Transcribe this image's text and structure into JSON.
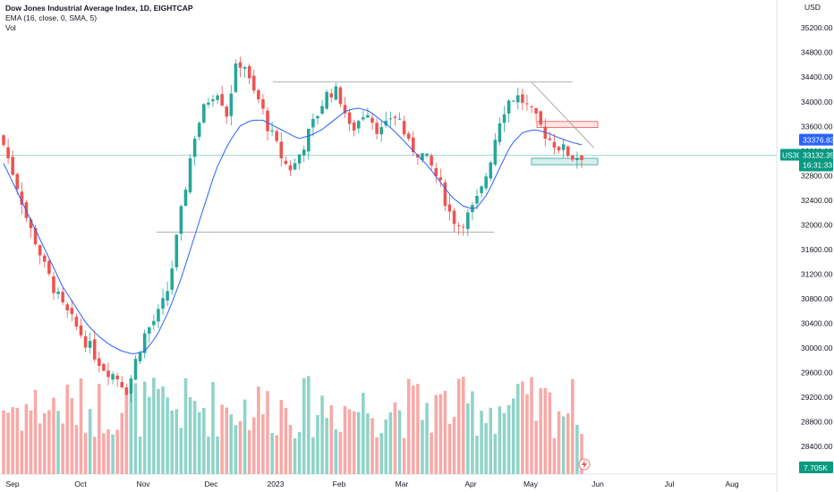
{
  "legend": {
    "title": "Dow Jones Industrial Average Index, 1D, EIGHTCAP",
    "ema": "EMA (16, close, 0, SMA, 5)",
    "vol": "Vol"
  },
  "currency": "USD",
  "badges": {
    "top_price": "33376.83",
    "symbol": "US30",
    "last_price": "33132.35",
    "countdown": "16:31:33",
    "volume": "7.705K"
  },
  "colors": {
    "up": "#26a69a",
    "down": "#ef5350",
    "up_vol": "#8fd3c8",
    "down_vol": "#f7a9a7",
    "ema": "#2962ff",
    "badge_blue": "#2962ff",
    "badge_teal": "#089981"
  },
  "chart_data": {
    "type": "candlestick",
    "title": "Dow Jones Industrial Average Index, 1D, EIGHTCAP",
    "y_axis_ticks": [
      "35200.00",
      "34800.00",
      "34400.00",
      "34000.00",
      "33600.00",
      "33200.00",
      "32800.00",
      "32400.00",
      "32000.00",
      "31600.00",
      "31200.00",
      "30800.00",
      "30400.00",
      "30000.00",
      "29600.00",
      "29200.00",
      "28800.00",
      "28400.00",
      "28000.00"
    ],
    "x_axis_labels": [
      "Sep",
      "Oct",
      "Nov",
      "Dec",
      "2023",
      "Feb",
      "Mar",
      "Apr",
      "May",
      "Jun",
      "Jul",
      "Aug"
    ],
    "ylim": [
      27950,
      35450
    ],
    "close_path": [
      33300,
      32900,
      32500,
      32000,
      31700,
      31300,
      31000,
      30700,
      30500,
      30300,
      30100,
      29900,
      29700,
      29600,
      29500,
      29300,
      29800,
      30200,
      30400,
      30600,
      31000,
      31800,
      32600,
      33400,
      33800,
      34100,
      34200,
      33800,
      34500,
      34700,
      34200,
      34000,
      33600,
      33300,
      33000,
      32900,
      33200,
      33500,
      33800,
      34100,
      34200,
      34000,
      33500,
      33700,
      33900,
      33600,
      33500,
      33800,
      33700,
      33300,
      33200,
      33100,
      32900,
      32600,
      32200,
      32000,
      32100,
      32300,
      32600,
      33100,
      33700,
      34000,
      34100,
      34000,
      33800,
      33600,
      33400,
      33300,
      33200,
      33100,
      33132
    ],
    "ema_path": [
      33000,
      32600,
      32200,
      31800,
      31400,
      31000,
      30700,
      30400,
      30200,
      30050,
      29950,
      29900,
      29950,
      30200,
      30600,
      31100,
      31700,
      32300,
      32900,
      33300,
      33600,
      33700,
      33700,
      33600,
      33500,
      33400,
      33450,
      33550,
      33700,
      33850,
      33900,
      33850,
      33700,
      33550,
      33350,
      33150,
      32950,
      32700,
      32450,
      32300,
      32250,
      32500,
      32900,
      33300,
      33500,
      33550,
      33500,
      33420,
      33350,
      33300
    ],
    "volume_ylim": [
      0,
      10
    ],
    "support_band": [
      33050,
      33110
    ],
    "resistance_band": [
      33580,
      33680
    ],
    "upper_level": 34320,
    "lower_level": 31880,
    "last_price": 33132.35,
    "ema_value": 33376.83
  }
}
